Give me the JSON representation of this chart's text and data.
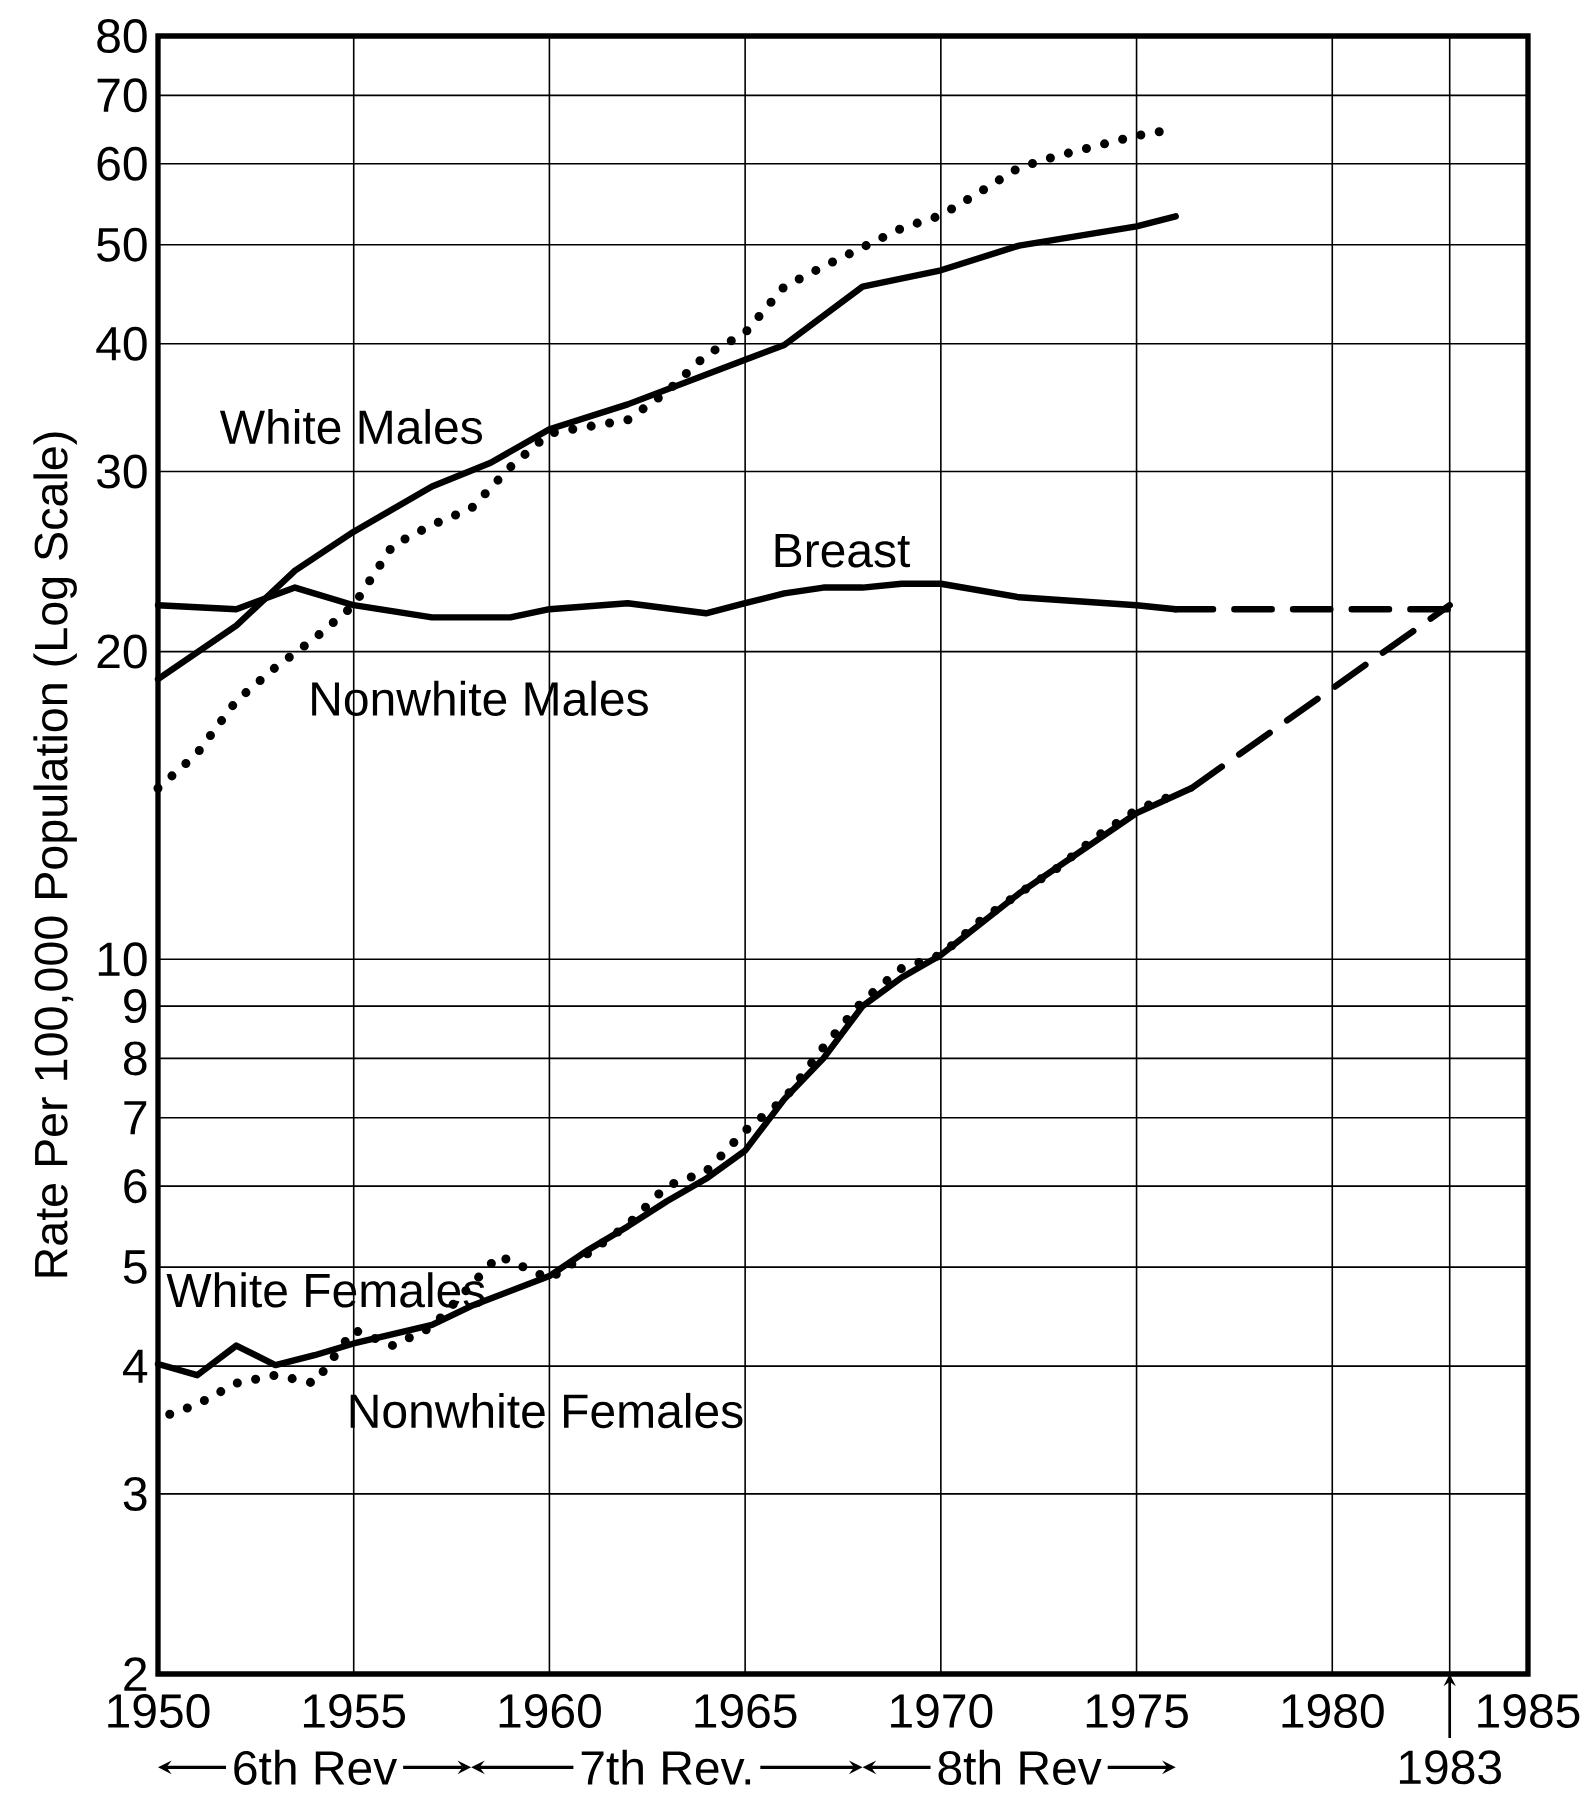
{
  "chart_data": {
    "type": "line",
    "ylabel": "Rate Per 100,000 Population (Log Scale)",
    "log": "y",
    "grid": true,
    "xlim": [
      1950,
      1985
    ],
    "xticks": [
      1950,
      1955,
      1960,
      1965,
      1970,
      1975,
      1980,
      1985
    ],
    "ylim": [
      2,
      80
    ],
    "yticks": [
      2,
      3,
      4,
      5,
      6,
      7,
      8,
      9,
      10,
      20,
      30,
      40,
      50,
      60,
      70,
      80
    ],
    "series": [
      {
        "name": "White Males",
        "color": "#000000",
        "line_style": "solid",
        "x": [
          1950,
          1952,
          1953.5,
          1955,
          1957,
          1958.5,
          1960,
          1962,
          1965,
          1966,
          1968,
          1970,
          1972,
          1975,
          1976
        ],
        "values": [
          18.8,
          21.2,
          24.0,
          26.2,
          29.0,
          30.6,
          33.0,
          34.9,
          38.6,
          39.9,
          45.5,
          47.2,
          49.9,
          52.1,
          53.3
        ]
      },
      {
        "name": "Nonwhite Males",
        "color": "#000000",
        "line_style": "dotted",
        "x": [
          1950,
          1951,
          1952,
          1953,
          1954,
          1955,
          1956,
          1957,
          1958,
          1959,
          1960,
          1962,
          1963,
          1964,
          1965,
          1966,
          1967,
          1968,
          1969,
          1970,
          1971,
          1972,
          1973,
          1974,
          1975,
          1976
        ],
        "values": [
          14.7,
          15.9,
          17.9,
          19.3,
          20.6,
          22.2,
          25.4,
          26.6,
          27.6,
          30.3,
          32.7,
          33.7,
          35.9,
          39.0,
          41.0,
          45.5,
          47.6,
          49.7,
          51.9,
          53.4,
          56.3,
          59.5,
          61.1,
          62.5,
          63.9,
          64.9
        ]
      },
      {
        "name": "Breast",
        "color": "#000000",
        "line_style": "solid",
        "x": [
          1950,
          1952,
          1953.5,
          1955,
          1957,
          1959,
          1960,
          1962,
          1964,
          1965,
          1966,
          1967,
          1968,
          1969,
          1970,
          1972,
          1975,
          1976
        ],
        "values": [
          22.2,
          22.0,
          23.1,
          22.2,
          21.6,
          21.6,
          22.0,
          22.3,
          21.8,
          22.3,
          22.8,
          23.1,
          23.1,
          23.3,
          23.3,
          22.6,
          22.2,
          22.0
        ]
      },
      {
        "color": "#000000",
        "line_style": "dashed",
        "x": [
          1976,
          1983
        ],
        "values": [
          22.0,
          22.0
        ]
      },
      {
        "name": "White Females",
        "color": "#000000",
        "line_style": "solid",
        "x": [
          1950,
          1951,
          1952,
          1953,
          1954,
          1955,
          1957,
          1958,
          1960,
          1961,
          1962,
          1963,
          1964,
          1965,
          1966,
          1967,
          1968,
          1969,
          1970,
          1972,
          1975,
          1976.4
        ],
        "values": [
          4.02,
          3.92,
          4.19,
          4.01,
          4.1,
          4.21,
          4.39,
          4.58,
          4.9,
          5.2,
          5.48,
          5.8,
          6.1,
          6.5,
          7.3,
          8.0,
          9.0,
          9.6,
          10.1,
          11.6,
          13.9,
          14.7
        ]
      },
      {
        "name": "Nonwhite Females",
        "color": "#000000",
        "line_style": "dotted",
        "x": [
          1950.3,
          1951,
          1952,
          1953,
          1954,
          1955,
          1956,
          1957,
          1958,
          1958.7,
          1960,
          1961,
          1962,
          1963,
          1964,
          1965,
          1966,
          1967,
          1968,
          1969,
          1970,
          1971,
          1972,
          1973,
          1974,
          1975,
          1976
        ],
        "values": [
          3.59,
          3.67,
          3.85,
          3.92,
          3.85,
          4.34,
          4.19,
          4.37,
          4.8,
          5.13,
          4.87,
          5.16,
          5.5,
          6.0,
          6.2,
          6.8,
          7.3,
          8.2,
          9.1,
          9.8,
          10.1,
          10.9,
          11.6,
          12.3,
          13.2,
          14.0,
          14.5
        ]
      },
      {
        "color": "#000000",
        "line_style": "dashed",
        "x": [
          1976.4,
          1983
        ],
        "values": [
          14.7,
          22.2
        ]
      }
    ],
    "ref_lines": [
      {
        "axis": "x",
        "value": 1983,
        "label": "1983"
      }
    ],
    "annotations": [
      "6th Rev",
      "7th Rev.",
      "8th Rev"
    ]
  }
}
